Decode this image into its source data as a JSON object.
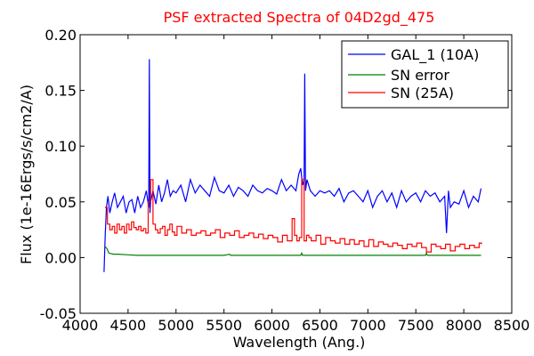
{
  "chart_data": {
    "type": "line",
    "title": "PSF extracted Spectra of 04D2gd_475",
    "xlabel": "Wavelength (Ang.)",
    "ylabel": "Flux (1e-16Ergs/s/cm2/A)",
    "xlim": [
      4000,
      8500
    ],
    "ylim": [
      -0.05,
      0.2
    ],
    "xticks": [
      "4000",
      "4500",
      "5000",
      "5500",
      "6000",
      "6500",
      "7000",
      "7500",
      "8000",
      "8500"
    ],
    "yticks": [
      "-0.05",
      "0.00",
      "0.05",
      "0.10",
      "0.15",
      "0.20"
    ],
    "grid": false,
    "legend_position": "top-right",
    "title_color": "#ff0000",
    "series": [
      {
        "name": "GAL_1 (10A)",
        "color": "#0000ff",
        "step": false,
        "x": [
          4250,
          4262,
          4275,
          4290,
          4310,
          4335,
          4360,
          4390,
          4420,
          4450,
          4480,
          4510,
          4540,
          4570,
          4600,
          4630,
          4660,
          4690,
          4715,
          4722,
          4728,
          4735,
          4760,
          4790,
          4820,
          4850,
          4880,
          4910,
          4940,
          4970,
          5000,
          5050,
          5100,
          5150,
          5200,
          5250,
          5300,
          5350,
          5400,
          5450,
          5500,
          5550,
          5600,
          5650,
          5700,
          5750,
          5800,
          5850,
          5900,
          5950,
          6000,
          6050,
          6100,
          6150,
          6200,
          6250,
          6280,
          6300,
          6320,
          6335,
          6342,
          6350,
          6365,
          6400,
          6450,
          6500,
          6550,
          6600,
          6650,
          6700,
          6750,
          6800,
          6850,
          6900,
          6950,
          7000,
          7050,
          7100,
          7150,
          7200,
          7250,
          7300,
          7350,
          7400,
          7450,
          7500,
          7550,
          7600,
          7650,
          7700,
          7750,
          7800,
          7820,
          7840,
          7860,
          7900,
          7950,
          8000,
          8050,
          8100,
          8150,
          8180
        ],
        "y": [
          -0.013,
          0.02,
          0.045,
          0.055,
          0.04,
          0.05,
          0.058,
          0.045,
          0.05,
          0.055,
          0.04,
          0.05,
          0.052,
          0.04,
          0.055,
          0.045,
          0.05,
          0.06,
          0.045,
          0.178,
          0.04,
          0.05,
          0.06,
          0.048,
          0.065,
          0.05,
          0.058,
          0.07,
          0.055,
          0.06,
          0.058,
          0.065,
          0.05,
          0.07,
          0.058,
          0.065,
          0.06,
          0.055,
          0.072,
          0.06,
          0.058,
          0.065,
          0.055,
          0.063,
          0.06,
          0.055,
          0.065,
          0.06,
          0.058,
          0.062,
          0.06,
          0.057,
          0.07,
          0.06,
          0.065,
          0.06,
          0.075,
          0.08,
          0.065,
          0.07,
          0.165,
          0.06,
          0.07,
          0.06,
          0.055,
          0.06,
          0.058,
          0.06,
          0.055,
          0.062,
          0.05,
          0.058,
          0.06,
          0.055,
          0.05,
          0.06,
          0.045,
          0.055,
          0.06,
          0.05,
          0.058,
          0.045,
          0.06,
          0.05,
          0.055,
          0.058,
          0.05,
          0.06,
          0.055,
          0.058,
          0.05,
          0.055,
          0.022,
          0.06,
          0.045,
          0.05,
          0.048,
          0.06,
          0.045,
          0.055,
          0.05,
          0.062
        ]
      },
      {
        "name": "SN error",
        "color": "#008000",
        "step": false,
        "x": [
          4260,
          4280,
          4300,
          4350,
          4400,
          4500,
          4600,
          4700,
          4800,
          5000,
          5500,
          5560,
          5570,
          6000,
          6300,
          6310,
          6320,
          6500,
          7000,
          7500,
          7600,
          7610,
          7620,
          8000,
          8180
        ],
        "y": [
          0.01,
          0.008,
          0.004,
          0.003,
          0.003,
          0.0025,
          0.002,
          0.002,
          0.002,
          0.002,
          0.002,
          0.003,
          0.002,
          0.002,
          0.002,
          0.004,
          0.002,
          0.002,
          0.002,
          0.002,
          0.002,
          0.004,
          0.002,
          0.002,
          0.002
        ]
      },
      {
        "name": "SN (25A)",
        "color": "#ff0000",
        "step": true,
        "x": [
          4260,
          4285,
          4310,
          4335,
          4360,
          4385,
          4410,
          4435,
          4460,
          4485,
          4510,
          4535,
          4560,
          4585,
          4610,
          4635,
          4660,
          4685,
          4710,
          4735,
          4760,
          4785,
          4810,
          4835,
          4860,
          4885,
          4910,
          4935,
          4960,
          4985,
          5010,
          5060,
          5110,
          5160,
          5210,
          5260,
          5310,
          5360,
          5410,
          5460,
          5510,
          5560,
          5610,
          5660,
          5710,
          5760,
          5810,
          5860,
          5910,
          5960,
          6010,
          6060,
          6110,
          6160,
          6210,
          6235,
          6260,
          6285,
          6310,
          6335,
          6360,
          6385,
          6410,
          6460,
          6510,
          6560,
          6610,
          6660,
          6710,
          6760,
          6810,
          6860,
          6910,
          6960,
          7010,
          7060,
          7110,
          7160,
          7210,
          7260,
          7310,
          7360,
          7410,
          7460,
          7510,
          7560,
          7610,
          7660,
          7710,
          7760,
          7810,
          7860,
          7910,
          7960,
          8010,
          8060,
          8110,
          8160,
          8185
        ],
        "y": [
          0.045,
          0.03,
          0.025,
          0.028,
          0.022,
          0.03,
          0.025,
          0.028,
          0.022,
          0.03,
          0.025,
          0.032,
          0.027,
          0.025,
          0.028,
          0.024,
          0.026,
          0.022,
          0.05,
          0.07,
          0.03,
          0.025,
          0.022,
          0.026,
          0.028,
          0.02,
          0.025,
          0.03,
          0.023,
          0.02,
          0.028,
          0.022,
          0.025,
          0.02,
          0.022,
          0.024,
          0.02,
          0.022,
          0.025,
          0.018,
          0.022,
          0.02,
          0.024,
          0.018,
          0.02,
          0.022,
          0.018,
          0.021,
          0.017,
          0.02,
          0.018,
          0.014,
          0.02,
          0.015,
          0.035,
          0.02,
          0.015,
          0.018,
          0.07,
          0.015,
          0.02,
          0.018,
          0.015,
          0.02,
          0.012,
          0.018,
          0.015,
          0.013,
          0.017,
          0.012,
          0.016,
          0.012,
          0.015,
          0.01,
          0.016,
          0.01,
          0.014,
          0.012,
          0.01,
          0.013,
          0.011,
          0.008,
          0.012,
          0.01,
          0.013,
          0.009,
          0.005,
          0.012,
          0.01,
          0.008,
          0.012,
          0.006,
          0.01,
          0.012,
          0.008,
          0.011,
          0.009,
          0.013,
          0.012
        ]
      }
    ]
  }
}
